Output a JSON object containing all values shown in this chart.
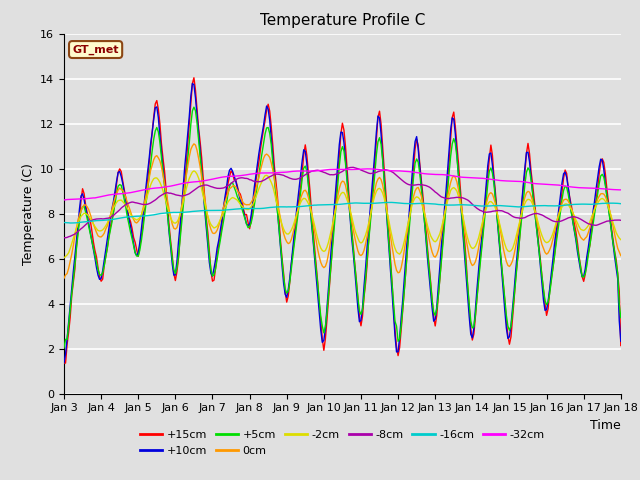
{
  "title": "Temperature Profile C",
  "xlabel": "Time",
  "ylabel": "Temperature (C)",
  "ylim": [
    0,
    16
  ],
  "xlim": [
    0,
    360
  ],
  "annotation": "GT_met",
  "tick_labels": [
    "Jan 3",
    "Jan 4",
    "Jan 5",
    "Jan 6",
    "Jan 7",
    "Jan 8",
    "Jan 9",
    "Jan 10",
    "Jan 11",
    "Jan 12",
    "Jan 13",
    "Jan 14",
    "Jan 15",
    "Jan 16",
    "Jan 17",
    "Jan 18"
  ],
  "tick_positions": [
    0,
    24,
    48,
    72,
    96,
    120,
    144,
    168,
    192,
    216,
    240,
    264,
    288,
    312,
    336,
    360
  ],
  "series_labels": [
    "+15cm",
    "+10cm",
    "+5cm",
    "0cm",
    "-2cm",
    "-8cm",
    "-16cm",
    "-32cm"
  ],
  "series_colors": [
    "#ff0000",
    "#0000dd",
    "#00dd00",
    "#ff9900",
    "#dddd00",
    "#aa00aa",
    "#00cccc",
    "#ff00ff"
  ],
  "background_color": "#e0e0e0",
  "plot_bg_color": "#e0e0e0",
  "grid_color": "#ffffff",
  "title_fontsize": 11,
  "label_fontsize": 9,
  "tick_fontsize": 8,
  "legend_ncol_row1": 6,
  "legend_ncol_row2": 2
}
